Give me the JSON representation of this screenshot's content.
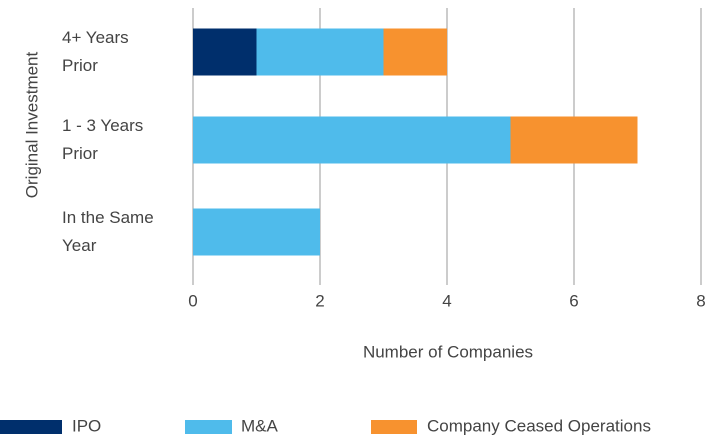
{
  "chart_data": {
    "type": "hbar-stacked",
    "categories": [
      "4+ Years Prior",
      "1 - 3 Years Prior",
      "In the Same Year"
    ],
    "series": [
      {
        "name": "IPO",
        "color": "#002f6c",
        "values": [
          1,
          0,
          0
        ]
      },
      {
        "name": "M&A",
        "color": "#4fbbeb",
        "values": [
          2,
          5,
          2
        ]
      },
      {
        "name": "Company Ceased Operations",
        "color": "#f7922f",
        "values": [
          1,
          2,
          0
        ]
      }
    ],
    "x_label": "Number of Companies",
    "y_label": "Original Investment",
    "xlim": [
      0,
      8
    ],
    "xticks": [
      0,
      2,
      4,
      6,
      8
    ],
    "grid": true
  }
}
